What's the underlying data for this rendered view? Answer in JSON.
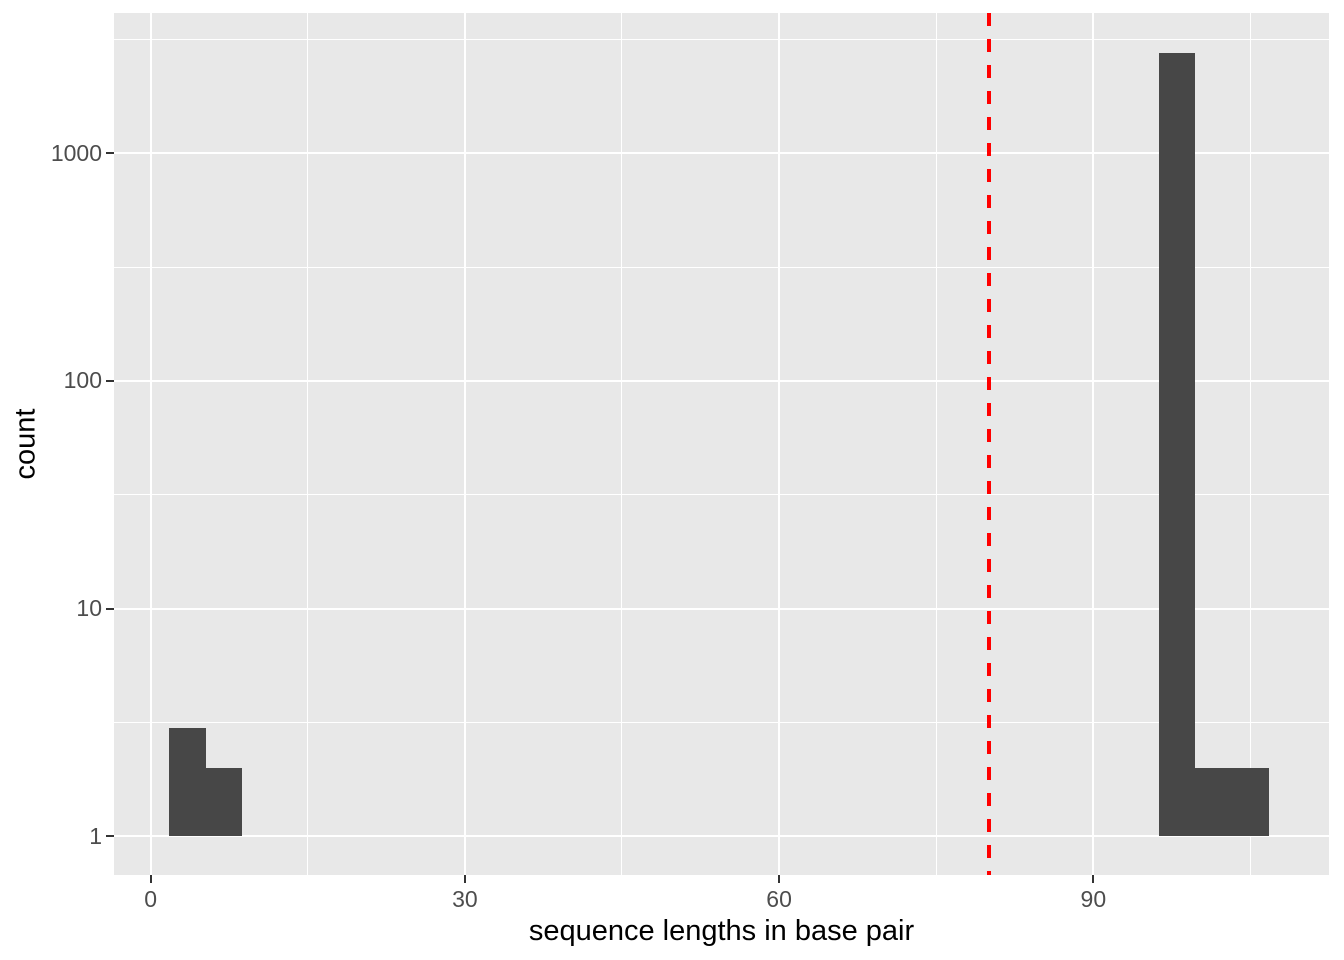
{
  "colors": {
    "background": "#FFFFFF",
    "panel_bg": "#E8E8E8",
    "gridline": "#FFFFFF",
    "bar_fill": "#474747",
    "vline_red": "#FF0000",
    "tick_label": "#4D4D4D",
    "axis_title": "#000000",
    "tick_mark": "#333333"
  },
  "chart_data": {
    "type": "bar",
    "subtype": "histogram",
    "title": "",
    "xlabel": "sequence lengths in base pair",
    "ylabel": "count",
    "y_scale": "log10",
    "grid": true,
    "legend": false,
    "x_ticks": [
      0,
      30,
      60,
      90
    ],
    "x_minor_ticks": [
      15,
      45,
      75,
      105
    ],
    "y_ticks": [
      1,
      10,
      100,
      1000
    ],
    "y_minor_ticks": [
      3.162,
      31.623,
      316.228,
      3162.278
    ],
    "xlim": [
      -3.5,
      112.5
    ],
    "ylim": [
      0.675,
      4140
    ],
    "ylim_log": [
      -0.171,
      3.617
    ],
    "binwidth": 3.5,
    "bins": [
      {
        "center": 3.5,
        "count": 3
      },
      {
        "center": 7,
        "count": 2
      },
      {
        "center": 98,
        "count": 2750
      },
      {
        "center": 101.5,
        "count": 2
      },
      {
        "center": 105,
        "count": 2
      }
    ],
    "vline": {
      "x": 80,
      "color": "#FF0000",
      "linetype": "dashed"
    }
  }
}
